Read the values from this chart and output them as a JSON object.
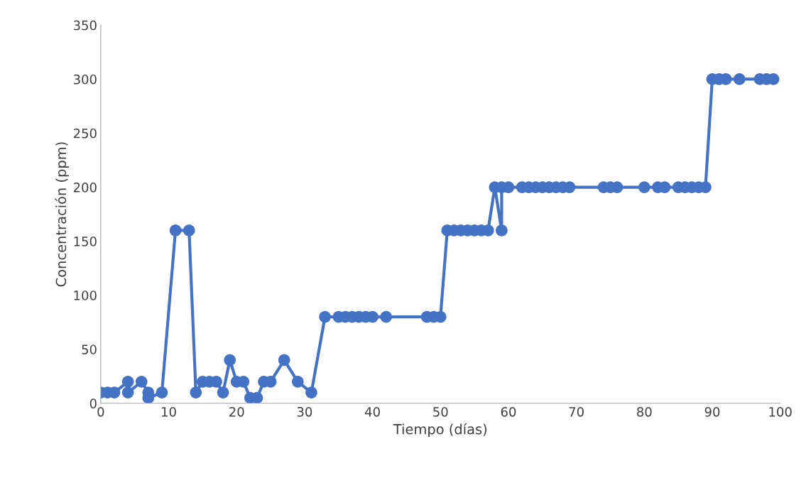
{
  "chart_data": {
    "type": "line",
    "xlabel": "Tiempo (días)",
    "ylabel": "Concentración (ppm)",
    "xlim": [
      0,
      100
    ],
    "xticks": [
      0,
      10,
      20,
      30,
      40,
      50,
      60,
      70,
      80,
      90,
      100
    ],
    "ylim": [
      0,
      350
    ],
    "yticks": [
      0,
      50,
      100,
      150,
      200,
      250,
      300,
      350
    ],
    "grid": false,
    "marker": "circle",
    "line_style": "solid",
    "series": [
      {
        "color": "#4472c4",
        "x": [
          0,
          1,
          2,
          4,
          4,
          6,
          7,
          7,
          9,
          11,
          13,
          14,
          15,
          16,
          17,
          18,
          19,
          20,
          21,
          22,
          23,
          24,
          25,
          27,
          29,
          31,
          33,
          35,
          36,
          37,
          38,
          39,
          40,
          42,
          48,
          49,
          50,
          51,
          52,
          53,
          54,
          55,
          56,
          57,
          58,
          59,
          59,
          60,
          62,
          63,
          64,
          65,
          66,
          67,
          68,
          69,
          74,
          75,
          76,
          80,
          82,
          83,
          85,
          86,
          87,
          88,
          89,
          90,
          91,
          92,
          94,
          97,
          98,
          99
        ],
        "values": [
          10,
          10,
          10,
          20,
          10,
          20,
          10,
          5,
          10,
          160,
          160,
          10,
          20,
          20,
          20,
          10,
          40,
          20,
          20,
          5,
          5,
          20,
          20,
          40,
          20,
          10,
          80,
          80,
          80,
          80,
          80,
          80,
          80,
          80,
          80,
          80,
          80,
          160,
          160,
          160,
          160,
          160,
          160,
          160,
          200,
          160,
          200,
          200,
          200,
          200,
          200,
          200,
          200,
          200,
          200,
          200,
          200,
          200,
          200,
          200,
          200,
          200,
          200,
          200,
          200,
          200,
          200,
          300,
          300,
          300,
          300,
          300,
          300,
          300
        ]
      }
    ]
  }
}
